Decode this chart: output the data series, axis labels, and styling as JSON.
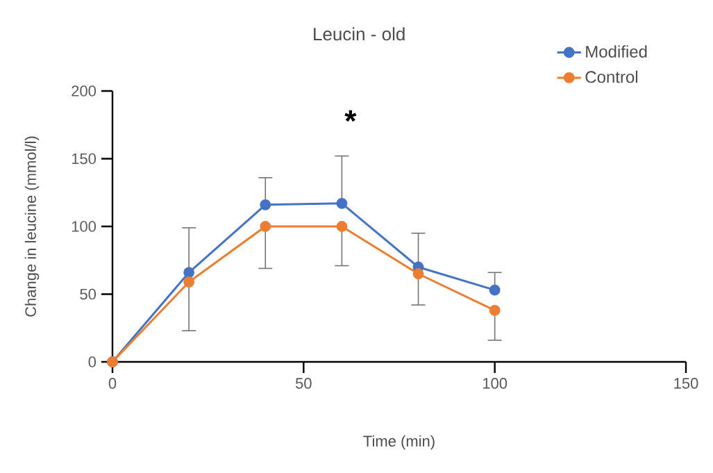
{
  "chart_data": {
    "type": "line",
    "title": "Leucin - old",
    "xlabel": "Time (min)",
    "ylabel": "Change in leucine (mmol/l)",
    "x": [
      0,
      20,
      40,
      60,
      80,
      100
    ],
    "series": [
      {
        "name": "Modified",
        "color": "#4472c4",
        "values": [
          0,
          66,
          116,
          117,
          70,
          53
        ],
        "errors": [
          null,
          [
            66,
            99
          ],
          [
            116,
            136
          ],
          [
            117,
            152
          ],
          [
            70,
            95
          ],
          [
            53,
            66
          ]
        ]
      },
      {
        "name": "Control",
        "color": "#ed7d31",
        "values": [
          0,
          59,
          100,
          100,
          65,
          38
        ],
        "errors": [
          null,
          [
            23,
            59
          ],
          [
            69,
            100
          ],
          [
            71,
            100
          ],
          [
            42,
            65
          ],
          [
            16,
            38
          ]
        ]
      }
    ],
    "xlim": [
      0,
      150
    ],
    "xticks": [
      0,
      50,
      100,
      150
    ],
    "ylim": [
      0,
      200
    ],
    "yticks": [
      0,
      50,
      100,
      150,
      200
    ],
    "annotations": [
      "*"
    ],
    "grid": false,
    "legend": "top right",
    "marker": "circle",
    "line_style": "solid"
  }
}
